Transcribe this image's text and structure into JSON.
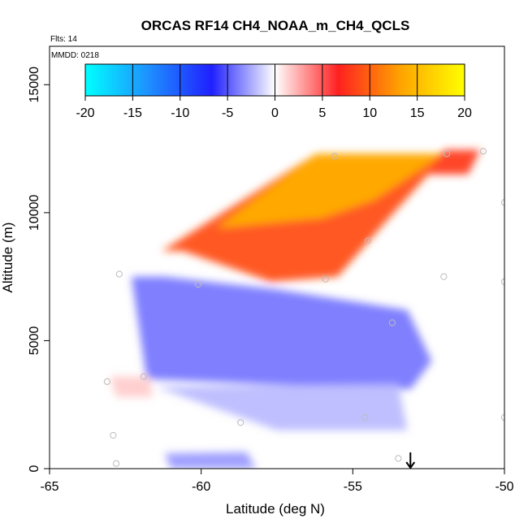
{
  "chart_data": {
    "type": "heatmap",
    "title": "ORCAS RF14 CH4_NOAA_m_CH4_QCLS",
    "annotations": {
      "flights": "Flts: 14",
      "date": "MMDD: 0218"
    },
    "xlabel": "Latitude (deg N)",
    "ylabel": "Altitude (m)",
    "xlim": [
      -65,
      -50
    ],
    "ylim": [
      0,
      16500
    ],
    "xticks": [
      -65,
      -60,
      -55,
      -50
    ],
    "xtick_labels": [
      "-65",
      "-60",
      "-55",
      "-50"
    ],
    "yticks": [
      0,
      5000,
      10000,
      15000
    ],
    "ytick_labels": [
      "0",
      "5000",
      "10000",
      "15000"
    ],
    "colorbar": {
      "min": -20,
      "max": 20,
      "ticks": [
        -20,
        -15,
        -10,
        -5,
        0,
        5,
        10,
        15,
        20
      ],
      "tick_labels": [
        "-20",
        "-15",
        "-10",
        "-5",
        "0",
        "5",
        "10",
        "15",
        "20"
      ],
      "colors": [
        "#00ffff",
        "#1e90ff",
        "#2020ff",
        "#ffffff",
        "#ff2020",
        "#ffa500",
        "#ffff00"
      ]
    },
    "regions": [
      {
        "name": "upper positive band",
        "poly": [
          [
            -61.3,
            8500
          ],
          [
            -56.2,
            12300
          ],
          [
            -51.9,
            12300
          ],
          [
            -53.8,
            9800
          ],
          [
            -55.5,
            7500
          ],
          [
            -57.7,
            7300
          ],
          [
            -60.6,
            8500
          ]
        ],
        "value": 9
      },
      {
        "name": "upper core",
        "poly": [
          [
            -59.5,
            9400
          ],
          [
            -56.2,
            12300
          ],
          [
            -52,
            12300
          ],
          [
            -54.3,
            10500
          ],
          [
            -56,
            9800
          ]
        ],
        "value": 14
      },
      {
        "name": "top rim",
        "poly": [
          [
            -52,
            12450
          ],
          [
            -50.8,
            12450
          ],
          [
            -51.2,
            11500
          ],
          [
            -52.5,
            11500
          ]
        ],
        "value": 8
      },
      {
        "name": "mid-troposphere negative",
        "poly": [
          [
            -62.3,
            7500
          ],
          [
            -61.2,
            7500
          ],
          [
            -57.5,
            7000
          ],
          [
            -53.2,
            6200
          ],
          [
            -52.4,
            4200
          ],
          [
            -53.1,
            3100
          ],
          [
            -58,
            3300
          ],
          [
            -61.8,
            3500
          ]
        ],
        "value": -4
      },
      {
        "name": "lower negative band",
        "poly": [
          [
            -61.5,
            3200
          ],
          [
            -53.5,
            3300
          ],
          [
            -53.2,
            1500
          ],
          [
            -57.5,
            1500
          ]
        ],
        "value": -2
      },
      {
        "name": "near-surface negative",
        "poly": [
          [
            -61.2,
            600
          ],
          [
            -58.5,
            650
          ],
          [
            -58.2,
            0
          ],
          [
            -61.0,
            0
          ]
        ],
        "value": -3
      },
      {
        "name": "low-level positive patch",
        "poly": [
          [
            -63,
            3600
          ],
          [
            -61.7,
            3600
          ],
          [
            -61.6,
            2800
          ],
          [
            -62.8,
            2800
          ]
        ],
        "value": 1.5
      }
    ],
    "sample_points": [
      {
        "lat": -55.6,
        "alt": 12200
      },
      {
        "lat": -51.9,
        "alt": 12300
      },
      {
        "lat": -50.7,
        "alt": 12400
      },
      {
        "lat": -50,
        "alt": 10400
      },
      {
        "lat": -54.5,
        "alt": 8900
      },
      {
        "lat": -52,
        "alt": 7500
      },
      {
        "lat": -50,
        "alt": 7300
      },
      {
        "lat": -55.9,
        "alt": 7400
      },
      {
        "lat": -60.1,
        "alt": 7200
      },
      {
        "lat": -62.7,
        "alt": 7600
      },
      {
        "lat": -53.7,
        "alt": 5700
      },
      {
        "lat": -61.9,
        "alt": 3600
      },
      {
        "lat": -63.1,
        "alt": 3400
      },
      {
        "lat": -58.7,
        "alt": 1800
      },
      {
        "lat": -54.6,
        "alt": 2000
      },
      {
        "lat": -50,
        "alt": 2000
      },
      {
        "lat": -62.9,
        "alt": 1300
      },
      {
        "lat": -62.8,
        "alt": 200
      },
      {
        "lat": -53.5,
        "alt": 400
      }
    ],
    "marker": {
      "lat": -53.1,
      "symbol": "down-arrow"
    }
  }
}
